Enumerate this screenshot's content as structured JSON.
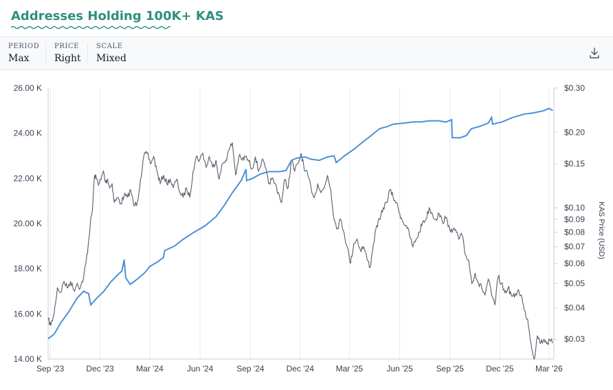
{
  "header": {
    "title": "Addresses Holding 100K+ KAS"
  },
  "controls": [
    {
      "label": "PERIOD",
      "value": "Max"
    },
    {
      "label": "PRICE",
      "value": "Right"
    },
    {
      "label": "SCALE",
      "value": "Mixed"
    }
  ],
  "toolbar": {
    "download_icon": "download-icon"
  },
  "colors": {
    "addresses": "#4a90d9",
    "price": "#555c66",
    "title": "#2e8f7e"
  },
  "chart_data": {
    "type": "line",
    "y_left": {
      "ticks": [
        14000,
        16000,
        18000,
        20000,
        22000,
        24000,
        26000
      ],
      "tick_labels": [
        "14.00 K",
        "16.00 K",
        "18.00 K",
        "20.00 K",
        "22.00 K",
        "24.00 K",
        "26.00 K"
      ],
      "range": [
        14000,
        26000
      ],
      "scale": "linear"
    },
    "y_right": {
      "title": "KAS Price (USD)",
      "scale": "log",
      "range": [
        0.025,
        0.3
      ],
      "ticks": [
        0.03,
        0.04,
        0.05,
        0.06,
        0.07,
        0.08,
        0.09,
        0.1,
        0.15,
        0.2,
        0.3
      ],
      "tick_labels": [
        "$0.03",
        "$0.04",
        "$0.05",
        "$0.06",
        "$0.07",
        "$0.08",
        "$0.09",
        "$0.10",
        "$0.15",
        "$0.20",
        "$0.30"
      ]
    },
    "x_axis": {
      "ticks": [
        "2023-09-01",
        "2023-12-01",
        "2024-03-01",
        "2024-06-01",
        "2024-09-01",
        "2024-12-01",
        "2025-03-01",
        "2025-06-01",
        "2025-09-01",
        "2025-12-01",
        "2026-03-01"
      ],
      "tick_labels": [
        "Sep '23",
        "Dec '23",
        "Mar '24",
        "Jun '24",
        "Sep '24",
        "Dec '24",
        "Mar '25",
        "Jun '25",
        "Sep '25",
        "Dec '25",
        "Mar '26"
      ],
      "range": [
        "2023-08-28",
        "2026-03-10"
      ]
    },
    "grid": "vertical",
    "series": [
      {
        "axis": "left",
        "points": [
          [
            "2023-08-28",
            14900
          ],
          [
            "2023-09-08",
            15100
          ],
          [
            "2023-09-20",
            15600
          ],
          [
            "2023-10-05",
            16100
          ],
          [
            "2023-10-20",
            16700
          ],
          [
            "2023-11-01",
            17000
          ],
          [
            "2023-11-10",
            16900
          ],
          [
            "2023-11-14",
            16400
          ],
          [
            "2023-11-25",
            16700
          ],
          [
            "2023-12-08",
            17000
          ],
          [
            "2023-12-20",
            17400
          ],
          [
            "2024-01-01",
            17700
          ],
          [
            "2024-01-10",
            17900
          ],
          [
            "2024-01-14",
            18400
          ],
          [
            "2024-01-17",
            17600
          ],
          [
            "2024-01-25",
            17300
          ],
          [
            "2024-02-05",
            17500
          ],
          [
            "2024-02-20",
            17800
          ],
          [
            "2024-03-01",
            18100
          ],
          [
            "2024-03-15",
            18300
          ],
          [
            "2024-03-26",
            18500
          ],
          [
            "2024-03-28",
            18800
          ],
          [
            "2024-04-15",
            19000
          ],
          [
            "2024-05-01",
            19300
          ],
          [
            "2024-05-20",
            19600
          ],
          [
            "2024-06-10",
            19900
          ],
          [
            "2024-06-30",
            20300
          ],
          [
            "2024-07-15",
            20800
          ],
          [
            "2024-07-31",
            21400
          ],
          [
            "2024-08-15",
            21900
          ],
          [
            "2024-08-24",
            22400
          ],
          [
            "2024-08-25",
            21900
          ],
          [
            "2024-09-05",
            22000
          ],
          [
            "2024-09-20",
            22200
          ],
          [
            "2024-10-05",
            22300
          ],
          [
            "2024-10-25",
            22300
          ],
          [
            "2024-11-05",
            22350
          ],
          [
            "2024-11-15",
            22800
          ],
          [
            "2024-11-25",
            22900
          ],
          [
            "2024-12-10",
            22950
          ],
          [
            "2024-12-20",
            22850
          ],
          [
            "2025-01-05",
            22800
          ],
          [
            "2025-01-20",
            22950
          ],
          [
            "2025-02-01",
            23000
          ],
          [
            "2025-02-05",
            22700
          ],
          [
            "2025-02-20",
            23000
          ],
          [
            "2025-03-10",
            23300
          ],
          [
            "2025-03-25",
            23600
          ],
          [
            "2025-04-10",
            23900
          ],
          [
            "2025-04-25",
            24200
          ],
          [
            "2025-05-10",
            24300
          ],
          [
            "2025-05-20",
            24400
          ],
          [
            "2025-06-10",
            24450
          ],
          [
            "2025-06-25",
            24500
          ],
          [
            "2025-07-10",
            24500
          ],
          [
            "2025-07-25",
            24550
          ],
          [
            "2025-08-10",
            24550
          ],
          [
            "2025-08-25",
            24500
          ],
          [
            "2025-09-04",
            24600
          ],
          [
            "2025-09-05",
            23800
          ],
          [
            "2025-09-20",
            23800
          ],
          [
            "2025-10-01",
            23900
          ],
          [
            "2025-10-10",
            24200
          ],
          [
            "2025-10-25",
            24300
          ],
          [
            "2025-11-10",
            24450
          ],
          [
            "2025-11-16",
            24700
          ],
          [
            "2025-11-18",
            24400
          ],
          [
            "2025-12-05",
            24500
          ],
          [
            "2025-12-25",
            24700
          ],
          [
            "2026-01-15",
            24850
          ],
          [
            "2026-02-01",
            24900
          ],
          [
            "2026-02-20",
            25000
          ],
          [
            "2026-03-01",
            25100
          ],
          [
            "2026-03-08",
            25000
          ]
        ]
      },
      {
        "axis": "right",
        "points": [
          [
            "2023-08-28",
            0.036
          ],
          [
            "2023-09-02",
            0.034
          ],
          [
            "2023-09-08",
            0.038
          ],
          [
            "2023-09-14",
            0.048
          ],
          [
            "2023-09-20",
            0.046
          ],
          [
            "2023-09-26",
            0.051
          ],
          [
            "2023-10-02",
            0.048
          ],
          [
            "2023-10-08",
            0.051
          ],
          [
            "2023-10-14",
            0.047
          ],
          [
            "2023-10-20",
            0.05
          ],
          [
            "2023-10-26",
            0.048
          ],
          [
            "2023-11-01",
            0.053
          ],
          [
            "2023-11-05",
            0.06
          ],
          [
            "2023-11-09",
            0.07
          ],
          [
            "2023-11-13",
            0.086
          ],
          [
            "2023-11-17",
            0.098
          ],
          [
            "2023-11-21",
            0.135
          ],
          [
            "2023-11-25",
            0.13
          ],
          [
            "2023-11-29",
            0.125
          ],
          [
            "2023-12-03",
            0.13
          ],
          [
            "2023-12-07",
            0.14
          ],
          [
            "2023-12-11",
            0.126
          ],
          [
            "2023-12-15",
            0.13
          ],
          [
            "2023-12-19",
            0.12
          ],
          [
            "2023-12-23",
            0.125
          ],
          [
            "2023-12-27",
            0.105
          ],
          [
            "2024-01-02",
            0.11
          ],
          [
            "2024-01-08",
            0.104
          ],
          [
            "2024-01-14",
            0.112
          ],
          [
            "2024-01-20",
            0.11
          ],
          [
            "2024-01-26",
            0.118
          ],
          [
            "2024-02-01",
            0.102
          ],
          [
            "2024-02-07",
            0.105
          ],
          [
            "2024-02-13",
            0.13
          ],
          [
            "2024-02-19",
            0.16
          ],
          [
            "2024-02-25",
            0.165
          ],
          [
            "2024-03-02",
            0.15
          ],
          [
            "2024-03-08",
            0.16
          ],
          [
            "2024-03-14",
            0.14
          ],
          [
            "2024-03-20",
            0.125
          ],
          [
            "2024-03-26",
            0.135
          ],
          [
            "2024-04-01",
            0.125
          ],
          [
            "2024-04-07",
            0.13
          ],
          [
            "2024-04-13",
            0.12
          ],
          [
            "2024-04-19",
            0.13
          ],
          [
            "2024-04-25",
            0.115
          ],
          [
            "2024-05-01",
            0.11
          ],
          [
            "2024-05-07",
            0.12
          ],
          [
            "2024-05-13",
            0.11
          ],
          [
            "2024-05-19",
            0.14
          ],
          [
            "2024-05-25",
            0.16
          ],
          [
            "2024-05-31",
            0.155
          ],
          [
            "2024-06-06",
            0.165
          ],
          [
            "2024-06-12",
            0.145
          ],
          [
            "2024-06-18",
            0.16
          ],
          [
            "2024-06-24",
            0.145
          ],
          [
            "2024-06-30",
            0.155
          ],
          [
            "2024-07-06",
            0.13
          ],
          [
            "2024-07-12",
            0.15
          ],
          [
            "2024-07-18",
            0.155
          ],
          [
            "2024-07-24",
            0.17
          ],
          [
            "2024-07-30",
            0.182
          ],
          [
            "2024-08-05",
            0.135
          ],
          [
            "2024-08-11",
            0.16
          ],
          [
            "2024-08-17",
            0.155
          ],
          [
            "2024-08-23",
            0.16
          ],
          [
            "2024-08-29",
            0.153
          ],
          [
            "2024-09-04",
            0.143
          ],
          [
            "2024-09-10",
            0.16
          ],
          [
            "2024-09-16",
            0.14
          ],
          [
            "2024-09-22",
            0.155
          ],
          [
            "2024-09-28",
            0.145
          ],
          [
            "2024-10-04",
            0.125
          ],
          [
            "2024-10-10",
            0.13
          ],
          [
            "2024-10-16",
            0.125
          ],
          [
            "2024-10-22",
            0.115
          ],
          [
            "2024-10-28",
            0.105
          ],
          [
            "2024-11-03",
            0.13
          ],
          [
            "2024-11-09",
            0.12
          ],
          [
            "2024-11-15",
            0.155
          ],
          [
            "2024-11-21",
            0.14
          ],
          [
            "2024-11-27",
            0.15
          ],
          [
            "2024-12-03",
            0.165
          ],
          [
            "2024-12-09",
            0.14
          ],
          [
            "2024-12-15",
            0.135
          ],
          [
            "2024-12-21",
            0.12
          ],
          [
            "2024-12-27",
            0.11
          ],
          [
            "2025-01-02",
            0.125
          ],
          [
            "2025-01-08",
            0.115
          ],
          [
            "2025-01-14",
            0.12
          ],
          [
            "2025-01-20",
            0.135
          ],
          [
            "2025-01-26",
            0.118
          ],
          [
            "2025-02-01",
            0.09
          ],
          [
            "2025-02-07",
            0.083
          ],
          [
            "2025-02-13",
            0.09
          ],
          [
            "2025-02-19",
            0.08
          ],
          [
            "2025-02-25",
            0.07
          ],
          [
            "2025-03-03",
            0.06
          ],
          [
            "2025-03-09",
            0.072
          ],
          [
            "2025-03-15",
            0.075
          ],
          [
            "2025-03-21",
            0.068
          ],
          [
            "2025-03-27",
            0.07
          ],
          [
            "2025-04-02",
            0.063
          ],
          [
            "2025-04-08",
            0.058
          ],
          [
            "2025-04-14",
            0.072
          ],
          [
            "2025-04-20",
            0.085
          ],
          [
            "2025-04-26",
            0.09
          ],
          [
            "2025-05-02",
            0.1
          ],
          [
            "2025-05-08",
            0.105
          ],
          [
            "2025-05-14",
            0.118
          ],
          [
            "2025-05-20",
            0.11
          ],
          [
            "2025-05-26",
            0.105
          ],
          [
            "2025-06-01",
            0.095
          ],
          [
            "2025-06-07",
            0.088
          ],
          [
            "2025-06-13",
            0.085
          ],
          [
            "2025-06-19",
            0.078
          ],
          [
            "2025-06-25",
            0.07
          ],
          [
            "2025-07-01",
            0.075
          ],
          [
            "2025-07-07",
            0.08
          ],
          [
            "2025-07-13",
            0.088
          ],
          [
            "2025-07-19",
            0.09
          ],
          [
            "2025-07-25",
            0.1
          ],
          [
            "2025-07-31",
            0.094
          ],
          [
            "2025-08-06",
            0.09
          ],
          [
            "2025-08-12",
            0.095
          ],
          [
            "2025-08-18",
            0.088
          ],
          [
            "2025-08-24",
            0.091
          ],
          [
            "2025-08-30",
            0.085
          ],
          [
            "2025-09-05",
            0.08
          ],
          [
            "2025-09-11",
            0.082
          ],
          [
            "2025-09-17",
            0.075
          ],
          [
            "2025-09-23",
            0.078
          ],
          [
            "2025-09-29",
            0.065
          ],
          [
            "2025-10-05",
            0.062
          ],
          [
            "2025-10-11",
            0.05
          ],
          [
            "2025-10-17",
            0.055
          ],
          [
            "2025-10-23",
            0.05
          ],
          [
            "2025-10-29",
            0.048
          ],
          [
            "2025-11-04",
            0.045
          ],
          [
            "2025-11-10",
            0.052
          ],
          [
            "2025-11-16",
            0.045
          ],
          [
            "2025-11-22",
            0.041
          ],
          [
            "2025-11-28",
            0.053
          ],
          [
            "2025-12-04",
            0.05
          ],
          [
            "2025-12-10",
            0.046
          ],
          [
            "2025-12-16",
            0.048
          ],
          [
            "2025-12-22",
            0.045
          ],
          [
            "2025-12-28",
            0.044
          ],
          [
            "2026-01-03",
            0.047
          ],
          [
            "2026-01-09",
            0.045
          ],
          [
            "2026-01-15",
            0.039
          ],
          [
            "2026-01-21",
            0.036
          ],
          [
            "2026-01-27",
            0.029
          ],
          [
            "2026-02-02",
            0.025
          ],
          [
            "2026-02-08",
            0.031
          ],
          [
            "2026-02-14",
            0.029
          ],
          [
            "2026-02-20",
            0.03
          ],
          [
            "2026-02-26",
            0.029
          ],
          [
            "2026-03-04",
            0.0295
          ],
          [
            "2026-03-08",
            0.029
          ]
        ]
      }
    ]
  }
}
